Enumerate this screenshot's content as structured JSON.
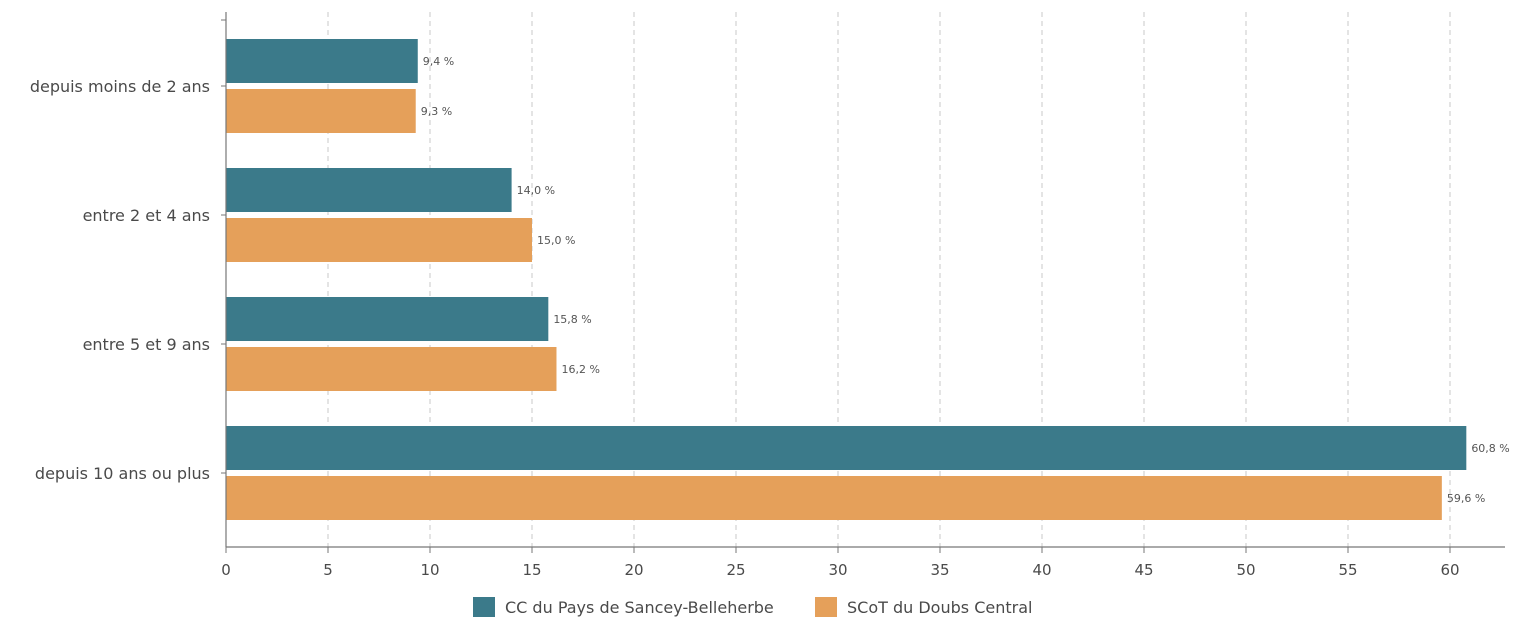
{
  "chart_data": {
    "type": "bar",
    "orientation": "horizontal",
    "categories": [
      "depuis moins de 2 ans",
      "entre 2 et 4 ans",
      "entre 5 et 9 ans",
      "depuis 10 ans ou plus"
    ],
    "series": [
      {
        "name": "CC du Pays de Sancey-Belleherbe",
        "color": "#3b7a8a",
        "values": [
          9.4,
          14.0,
          15.8,
          60.8
        ],
        "labels": [
          "9,4 %",
          "14,0 %",
          "15,8 %",
          "60,8 %"
        ]
      },
      {
        "name": "SCoT du Doubs Central",
        "color": "#e5a05a",
        "values": [
          9.3,
          15.0,
          16.2,
          59.6
        ],
        "labels": [
          "9,3 %",
          "15,0 %",
          "16,2 %",
          "59,6 %"
        ]
      }
    ],
    "xticks": [
      "0",
      "5",
      "10",
      "15",
      "20",
      "25",
      "30",
      "35",
      "40",
      "45",
      "50",
      "55",
      "60"
    ],
    "xlim": [
      0,
      63.5
    ],
    "grid": "vertical dashed",
    "legend_position": "bottom"
  }
}
